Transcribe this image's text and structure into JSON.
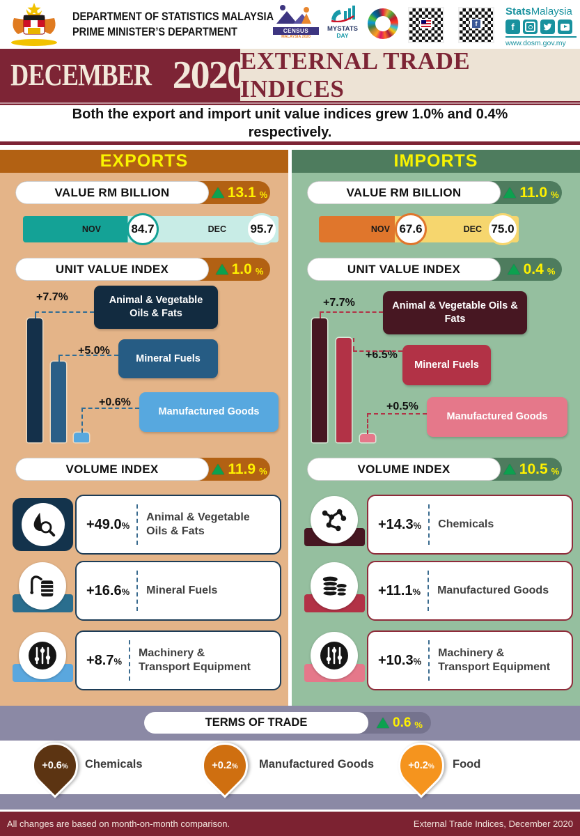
{
  "symbols": {
    "pct": "%"
  },
  "header": {
    "dept_line1": "DEPARTMENT OF STATISTICS MALAYSIA",
    "dept_line2": "PRIME MINISTER’S DEPARTMENT",
    "census_label": "CENSUS",
    "census_sub": "MALAYSIA",
    "census_year": "2020",
    "mystats_line1": "MYSTATS",
    "mystats_line2": "DAY",
    "brand_bold": "Stats",
    "brand_rest": "Malaysia",
    "website": "www.dosm.gov.my",
    "facebook_glyph": "f"
  },
  "banner": {
    "month": "DECEMBER",
    "year": "2020",
    "title": "EXTERNAL TRADE INDICES"
  },
  "headline": "Both the export and import unit value indices grew 1.0% and 0.4% respectively.",
  "exports": {
    "title": "EXPORTS",
    "value_label": "VALUE RM BILLION",
    "value_change": "13.1",
    "nov_label": "NOV",
    "nov_value": "84.7",
    "dec_label": "DEC",
    "dec_value": "95.7",
    "unit_value_label": "UNIT VALUE INDEX",
    "unit_value_change": "1.0",
    "unit_items": [
      {
        "pct": "+7.7%",
        "name": "Animal & Vegetable Oils & Fats",
        "value": 7.7
      },
      {
        "pct": "+5.0%",
        "name": "Mineral Fuels",
        "value": 5.0
      },
      {
        "pct": "+0.6%",
        "name": "Manufactured Goods",
        "value": 0.6
      }
    ],
    "volume_label": "VOLUME INDEX",
    "volume_change": "11.9",
    "volume_items": [
      {
        "pct": "+49.0",
        "name": "Animal & Vegetable Oils & Fats",
        "icon": "oil-drop-magnifier-icon"
      },
      {
        "pct": "+16.6",
        "name": "Mineral Fuels",
        "icon": "fuel-pump-icon"
      },
      {
        "pct": "+8.7",
        "name": "Machinery & Transport Equipment",
        "icon": "equalizer-icon"
      }
    ]
  },
  "imports": {
    "title": "IMPORTS",
    "value_label": "VALUE RM BILLION",
    "value_change": "11.0",
    "nov_label": "NOV",
    "nov_value": "67.6",
    "dec_label": "DEC",
    "dec_value": "75.0",
    "unit_value_label": "UNIT VALUE INDEX",
    "unit_value_change": "0.4",
    "unit_items": [
      {
        "pct": "+7.7%",
        "name": "Animal & Vegetable Oils & Fats",
        "value": 7.7
      },
      {
        "pct": "+6.5%",
        "name": "Mineral Fuels",
        "value": 6.5
      },
      {
        "pct": "+0.5%",
        "name": "Manufactured Goods",
        "value": 0.5
      }
    ],
    "volume_label": "VOLUME INDEX",
    "volume_change": "10.5",
    "volume_items": [
      {
        "pct": "+14.3",
        "name": "Chemicals",
        "icon": "molecule-icon"
      },
      {
        "pct": "+11.1",
        "name": "Manufactured Goods",
        "icon": "coins-icon"
      },
      {
        "pct": "+10.3",
        "name": "Machinery & Transport Equipment",
        "icon": "equalizer-icon"
      }
    ]
  },
  "terms": {
    "label": "TERMS OF TRADE",
    "change": "0.6",
    "pins": [
      {
        "pct": "+0.6",
        "name": "Chemicals",
        "color": "#5C3412"
      },
      {
        "pct": "+0.2",
        "name": "Manufactured Goods",
        "color": "#CF6F10"
      },
      {
        "pct": "+0.2",
        "name": "Food",
        "color": "#F5941E"
      }
    ]
  },
  "footer": {
    "note": "All changes are based on month-on-month comparison.",
    "title": "External Trade Indices, December 2020"
  },
  "colors": {
    "exports_accent": "#B26113",
    "exports_bg": "#E4B488",
    "imports_accent": "#4E7C5E",
    "imports_bg": "#95BF9F",
    "maroon": "#7D2435",
    "yellow": "#FFF100",
    "green_arrow": "#0CA14F",
    "terms_band": "#8B89A5"
  },
  "chart_data": [
    {
      "id": "exports-value",
      "type": "bar",
      "title": "Exports Value RM Billion",
      "categories": [
        "NOV",
        "DEC"
      ],
      "values": [
        84.7,
        95.7
      ],
      "change_pct": 13.1,
      "unit": "RM billion"
    },
    {
      "id": "exports-unit-value",
      "type": "bar",
      "title": "Exports Unit Value Index change by commodity",
      "categories": [
        "Animal & Vegetable Oils & Fats",
        "Mineral Fuels",
        "Manufactured Goods"
      ],
      "values": [
        7.7,
        5.0,
        0.6
      ],
      "overall_change_pct": 1.0,
      "unit": "%",
      "ylim": [
        0,
        8
      ],
      "grid": false
    },
    {
      "id": "exports-volume",
      "type": "table",
      "title": "Exports Volume Index change by commodity",
      "categories": [
        "Animal & Vegetable Oils & Fats",
        "Mineral Fuels",
        "Machinery & Transport Equipment"
      ],
      "values": [
        49.0,
        16.6,
        8.7
      ],
      "overall_change_pct": 11.9,
      "unit": "%"
    },
    {
      "id": "imports-value",
      "type": "bar",
      "title": "Imports Value RM Billion",
      "categories": [
        "NOV",
        "DEC"
      ],
      "values": [
        67.6,
        75.0
      ],
      "change_pct": 11.0,
      "unit": "RM billion"
    },
    {
      "id": "imports-unit-value",
      "type": "bar",
      "title": "Imports Unit Value Index change by commodity",
      "categories": [
        "Animal & Vegetable Oils & Fats",
        "Mineral Fuels",
        "Manufactured Goods"
      ],
      "values": [
        7.7,
        6.5,
        0.5
      ],
      "overall_change_pct": 0.4,
      "unit": "%",
      "ylim": [
        0,
        8
      ],
      "grid": false
    },
    {
      "id": "imports-volume",
      "type": "table",
      "title": "Imports Volume Index change by commodity",
      "categories": [
        "Chemicals",
        "Manufactured Goods",
        "Machinery & Transport Equipment"
      ],
      "values": [
        14.3,
        11.1,
        10.3
      ],
      "overall_change_pct": 10.5,
      "unit": "%"
    },
    {
      "id": "terms-of-trade",
      "type": "table",
      "title": "Terms of Trade change by commodity",
      "categories": [
        "Chemicals",
        "Manufactured Goods",
        "Food"
      ],
      "values": [
        0.6,
        0.2,
        0.2
      ],
      "overall_change_pct": 0.6,
      "unit": "%"
    }
  ]
}
